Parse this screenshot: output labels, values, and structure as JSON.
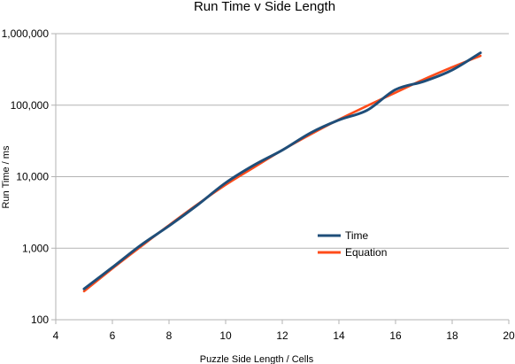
{
  "chart_data": {
    "type": "line",
    "title": "Run Time v Side Length",
    "xlabel": "Puzzle Side Length / Cells",
    "ylabel": "Run Time / ms",
    "xlim": [
      4,
      20
    ],
    "ylim": [
      100,
      1000000
    ],
    "yscale": "log",
    "grid": "horizontal",
    "legend_position": "right-center",
    "x_ticks": [
      4,
      6,
      8,
      10,
      12,
      14,
      16,
      18,
      20
    ],
    "x_tick_labels": [
      "4",
      "6",
      "8",
      "10",
      "12",
      "14",
      "16",
      "18",
      "20"
    ],
    "y_ticks": [
      100,
      1000,
      10000,
      100000,
      1000000
    ],
    "y_tick_labels": [
      "100",
      "1,000",
      "10,000",
      "100,000",
      "1,000,000"
    ],
    "series": [
      {
        "name": "Time",
        "color": "#1f4e79",
        "x": [
          5,
          6,
          7,
          8,
          9,
          10,
          11,
          12,
          13,
          14,
          15,
          16,
          17,
          18,
          19
        ],
        "y": [
          270,
          540,
          1100,
          2050,
          4000,
          8200,
          14500,
          23500,
          41000,
          62000,
          85000,
          165000,
          215000,
          310000,
          540000
        ]
      },
      {
        "name": "Equation",
        "color": "#ff4c1a",
        "x": [
          5,
          6,
          7,
          8,
          9,
          10,
          11,
          12,
          13,
          14,
          15,
          16,
          17,
          18,
          19
        ],
        "y": [
          250,
          520,
          1050,
          2100,
          4100,
          7700,
          13500,
          23500,
          39000,
          63000,
          98000,
          150000,
          230000,
          340000,
          490000
        ]
      }
    ]
  }
}
